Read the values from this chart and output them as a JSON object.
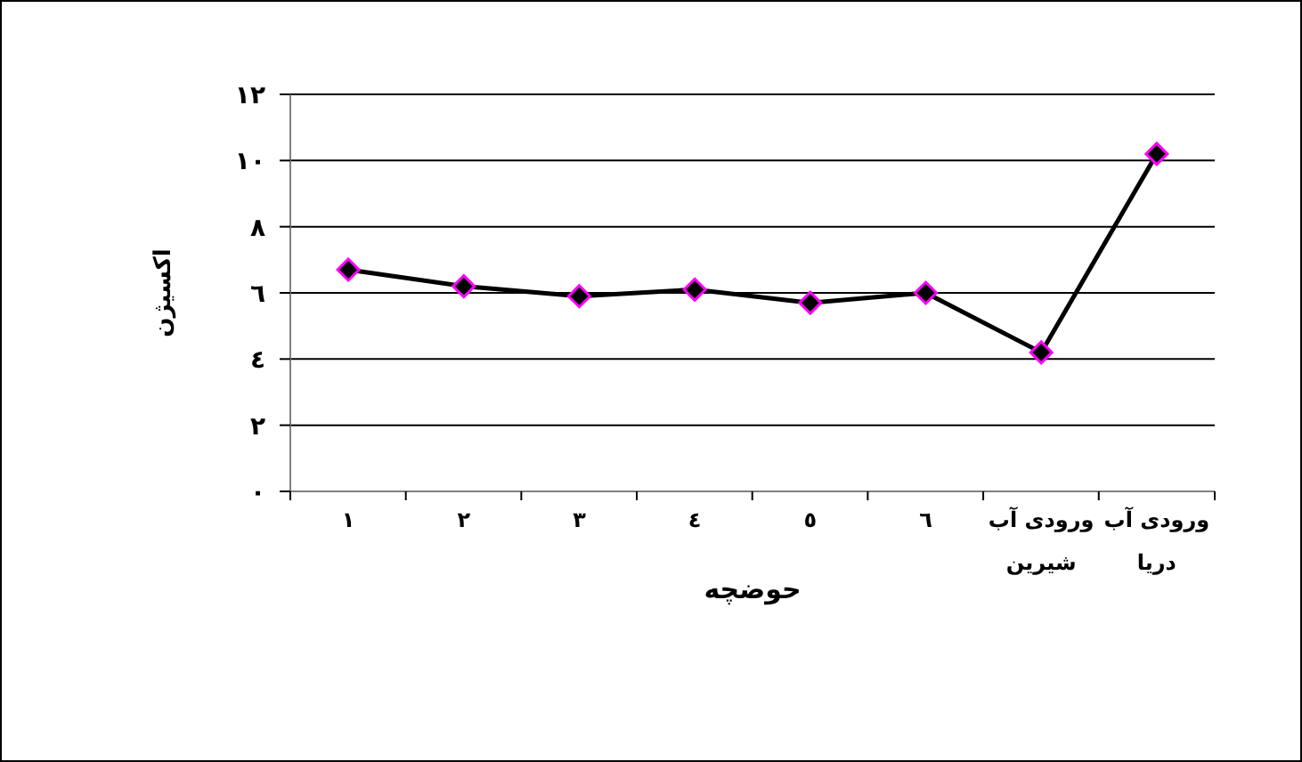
{
  "chart_data": {
    "type": "line",
    "xlabel": "حوضچه",
    "ylabel": "اکسیژن",
    "categories": [
      "١",
      "٢",
      "٣",
      "٤",
      "٥",
      "٦",
      "ورودی آب شیرین",
      "ورودی آب دریا"
    ],
    "series": [
      {
        "color": "#000000",
        "values": [
          6.7,
          6.2,
          5.9,
          6.1,
          5.7,
          6.0,
          4.2,
          10.2
        ]
      }
    ],
    "ylim": [
      0,
      12
    ],
    "yticks": [
      {
        "value": 0,
        "label": "٠"
      },
      {
        "value": 2,
        "label": "٢"
      },
      {
        "value": 4,
        "label": "٤"
      },
      {
        "value": 6,
        "label": "٦"
      },
      {
        "value": 8,
        "label": "٨"
      },
      {
        "value": 10,
        "label": "١٠"
      },
      {
        "value": 12,
        "label": "١٢"
      }
    ],
    "grid": "y",
    "legend": false,
    "marker": "diamond",
    "line_style": "solid"
  }
}
